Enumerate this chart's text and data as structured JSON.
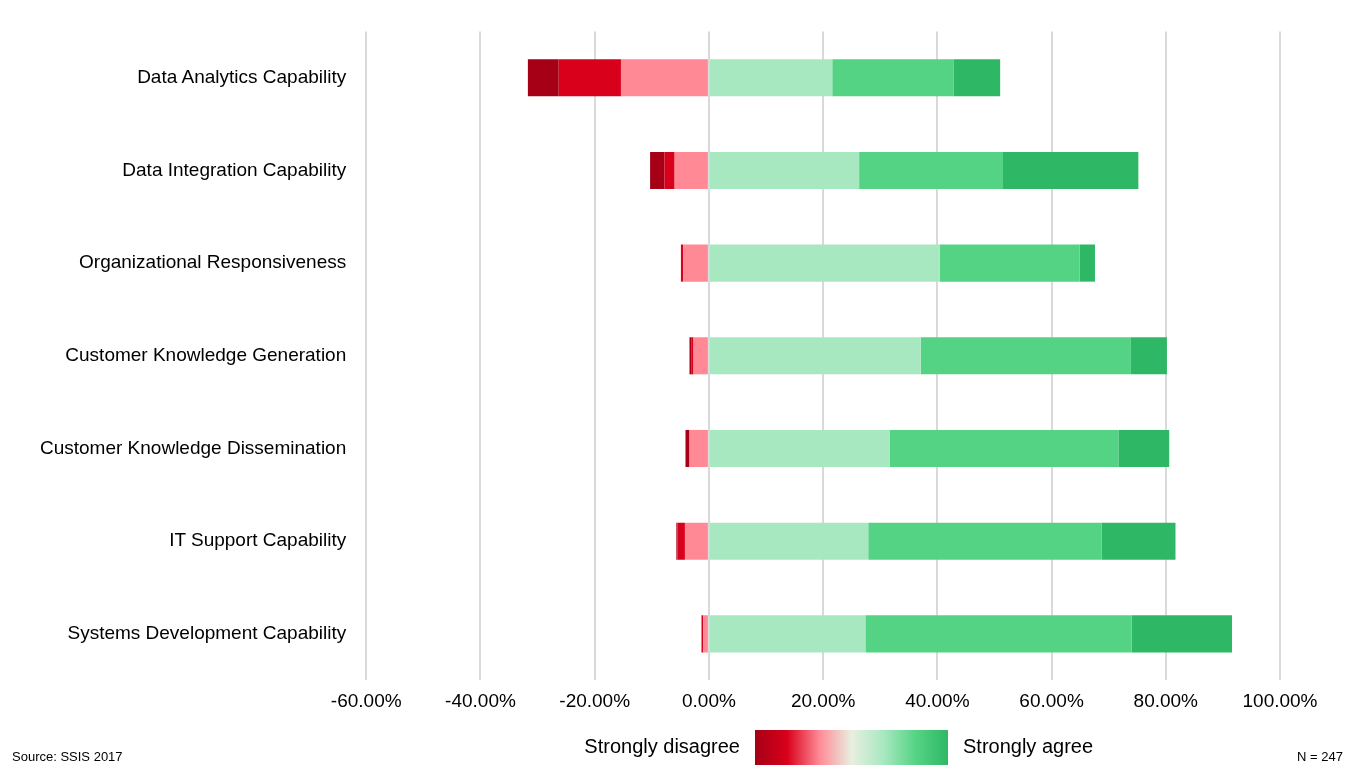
{
  "chart_data": {
    "type": "bar",
    "orientation": "horizontal",
    "stacked": true,
    "categories": [
      "Data Analytics Capability",
      "Data Integration Capability",
      "Organizational Responsiveness",
      "Customer Knowledge Generation",
      "Customer Knowledge Dissemination",
      "IT Support Capability",
      "Systems Development Capability"
    ],
    "series": [
      {
        "color": "#ff8a96",
        "values": [
          -15.4,
          -6.0,
          -4.5,
          -2.7,
          -3.4,
          -4.2,
          -1.0
        ]
      },
      {
        "color": "#d9001b",
        "values": [
          -10.9,
          -1.8,
          -0.4,
          -0.4,
          0,
          -1.3,
          -0.3
        ]
      },
      {
        "color": "#a50016",
        "values": [
          -5.4,
          -2.5,
          0,
          -0.3,
          -0.7,
          -0.2,
          0
        ]
      },
      {
        "color": "#a8e8c0",
        "values": [
          21.6,
          26.3,
          40.4,
          37.1,
          31.7,
          27.9,
          27.4
        ]
      },
      {
        "color": "#55d384",
        "values": [
          21.2,
          25.2,
          24.5,
          36.8,
          40.0,
          40.9,
          46.6
        ]
      },
      {
        "color": "#2eb865",
        "values": [
          8.2,
          23.7,
          2.7,
          6.3,
          8.9,
          12.9,
          17.6
        ]
      }
    ],
    "xlim": [
      -60,
      100
    ],
    "xticks": [
      {
        "value": -60,
        "label": "-60.00%"
      },
      {
        "value": -40,
        "label": "-40.00%"
      },
      {
        "value": -20,
        "label": "-20.00%"
      },
      {
        "value": 0,
        "label": "0.00%"
      },
      {
        "value": 20,
        "label": "20.00%"
      },
      {
        "value": 40,
        "label": "40.00%"
      },
      {
        "value": 60,
        "label": "60.00%"
      },
      {
        "value": 80,
        "label": "80.00%"
      },
      {
        "value": 100,
        "label": "100.00%"
      }
    ],
    "grid": "x",
    "legend": false,
    "annotations": [
      "Strongly disagree",
      "Strongly agree",
      "Source: SSIS 2017",
      "N = 247"
    ]
  }
}
